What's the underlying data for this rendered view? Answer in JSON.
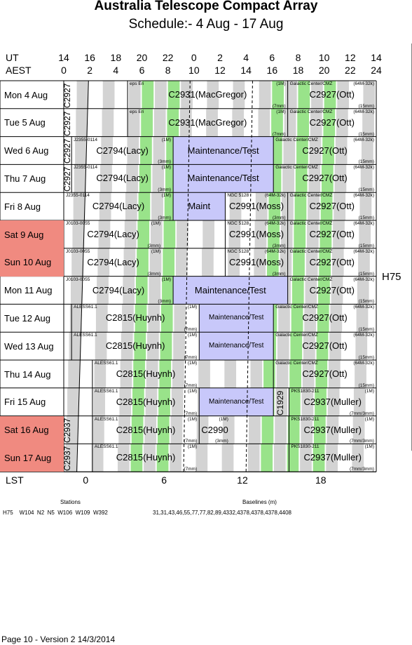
{
  "header": {
    "title": "Australia Telescope Compact Array",
    "subtitle": "Schedule:- 4  Aug - 17 Aug"
  },
  "axes": {
    "ut_label": "UT",
    "aest_label": "AEST",
    "lst_label": "LST",
    "ut_ticks": [
      "14",
      "16",
      "18",
      "20",
      "22",
      "0",
      "2",
      "4",
      "6",
      "8",
      "10",
      "12",
      "14"
    ],
    "aest_ticks": [
      "0",
      "2",
      "4",
      "6",
      "8",
      "10",
      "12",
      "14",
      "16",
      "18",
      "20",
      "22",
      "24"
    ],
    "lst_ticks": [
      "0",
      "6",
      "12",
      "18"
    ]
  },
  "colors": {
    "weekend": "#f08a80",
    "green": "#99e38a",
    "grey": "#d3d3d3",
    "maintenance": "#c8c8fa"
  },
  "days": [
    {
      "label": "Mon   4  Aug",
      "weekend": false
    },
    {
      "label": "Tue   5  Aug",
      "weekend": false
    },
    {
      "label": "Wed   6  Aug",
      "weekend": false
    },
    {
      "label": "Thu   7  Aug",
      "weekend": false
    },
    {
      "label": "Fri    8  Aug",
      "weekend": false
    },
    {
      "label": "Sat   9  Aug",
      "weekend": true
    },
    {
      "label": "Sun  10 Aug",
      "weekend": true
    },
    {
      "label": "Mon  11 Aug",
      "weekend": false
    },
    {
      "label": "Tue   12 Aug",
      "weekend": false
    },
    {
      "label": "Wed  13 Aug",
      "weekend": false
    },
    {
      "label": "Thu   14 Aug",
      "weekend": false
    },
    {
      "label": "Fri    15 Aug",
      "weekend": false
    },
    {
      "label": "Sat   16 Aug",
      "weekend": true
    },
    {
      "label": "Sun  17 Aug",
      "weekend": true
    }
  ],
  "configuration": "H75",
  "stations_label": "Stations",
  "stations": "H75    W104  N2  N5  W106  W109  W392",
  "baselines_label": "Baselines (m)",
  "baselines": "31,31,43,46,55,77,77,82,89,4332,4378,4378,4378,4408",
  "footer": "Page 10 - Version 2  14/3/2014",
  "rows": [
    {
      "blocks": [
        {
          "a": 0,
          "b": 0.6,
          "vert": "C2927"
        },
        {
          "a": 4.9,
          "b": 17.2,
          "src": "eps Eri",
          "cfg": "(1M)",
          "name": "C2931(MacGregor)",
          "rec": "(7mm)"
        },
        {
          "a": 17.2,
          "b": 24,
          "src": "Galactic Center/CMZ",
          "cfg": "(64M-32k)",
          "name": "C2927(Ott)",
          "rec": "(15mm)"
        }
      ]
    },
    {
      "blocks": [
        {
          "a": 0,
          "b": 0.6,
          "vert": "C2927"
        },
        {
          "a": 4.9,
          "b": 17.2,
          "src": "eps Eri",
          "cfg": "(1M)",
          "name": "C2931(MacGregor)",
          "rec": "(7mm)"
        },
        {
          "a": 17.2,
          "b": 24,
          "src": "Galactic Center/CMZ",
          "cfg": "(64M-32k)",
          "name": "C2927(Ott)",
          "rec": "(15mm)"
        }
      ]
    },
    {
      "blocks": [
        {
          "a": 0,
          "b": 0.6,
          "vert": "C2927"
        },
        {
          "a": 0.6,
          "b": 8.4,
          "src": "J2355-0114",
          "cfg": "(1M)",
          "name": "C2794(Lacy)",
          "rec": "(3mm)"
        },
        {
          "a": 8.4,
          "b": 16.1,
          "name": "Maintenance/Test",
          "maint": true
        },
        {
          "a": 16.1,
          "b": 24,
          "src": "Galactic Center/CMZ",
          "cfg": "(64M-32k)",
          "name": "C2927(Ott)",
          "rec": "(15mm)"
        }
      ]
    },
    {
      "blocks": [
        {
          "a": 0,
          "b": 0.6,
          "vert": "C2927"
        },
        {
          "a": 0.6,
          "b": 8.4,
          "src": "J2355-0114",
          "cfg": "(1M)",
          "name": "C2794(Lacy)",
          "rec": "(3mm)"
        },
        {
          "a": 8.4,
          "b": 16.1,
          "name": "Maintenance/Test",
          "maint": true
        },
        {
          "a": 16.1,
          "b": 24,
          "src": "Galactic Center/CMZ",
          "cfg": "(64M-32k)",
          "name": "C2927(Ott)",
          "rec": "(15mm)"
        }
      ]
    },
    {
      "blocks": [
        {
          "a": 0,
          "b": 8.4,
          "src": "J2355-0114",
          "cfg": "(1M)",
          "name": "C2794(Lacy)",
          "rec": "(3mm)"
        },
        {
          "a": 8.4,
          "b": 12.4,
          "name": "Maint",
          "maint": true
        },
        {
          "a": 12.4,
          "b": 17.2,
          "src": "NGC 5128",
          "cfg": "(64M-32k)",
          "name": "C2991(Moss)",
          "rec": "(3mm)"
        },
        {
          "a": 17.2,
          "b": 24,
          "src": "Galactic Center/CMZ",
          "cfg": "(64M-32k)",
          "name": "C2927(Ott)",
          "rec": "(15mm)"
        }
      ]
    },
    {
      "blocks": [
        {
          "a": 0,
          "b": 7.6,
          "src": "J0103-0055",
          "cfg": "(1M)",
          "name": "C2794(Lacy)",
          "rec": "(3mm)"
        },
        {
          "a": 12.4,
          "b": 17.2,
          "src": "NGC 5128",
          "cfg": "(64M-32k)",
          "name": "C2991(Moss)",
          "rec": "(3mm)"
        },
        {
          "a": 17.2,
          "b": 24,
          "src": "Galactic Center/CMZ",
          "cfg": "(64M-32k)",
          "name": "C2927(Ott)",
          "rec": "(15mm)"
        }
      ]
    },
    {
      "blocks": [
        {
          "a": 0,
          "b": 7.6,
          "src": "J0103-0055",
          "cfg": "(1M)",
          "name": "C2794(Lacy)",
          "rec": "(3mm)"
        },
        {
          "a": 12.4,
          "b": 17.2,
          "src": "NGC 5128",
          "cfg": "(64M-32k)",
          "name": "C2991(Moss)",
          "rec": "(3mm)"
        },
        {
          "a": 17.2,
          "b": 24,
          "src": "Galactic Center/CMZ",
          "cfg": "(64M-32k)",
          "name": "C2927(Ott)",
          "rec": "(15mm)"
        }
      ]
    },
    {
      "blocks": [
        {
          "a": 0,
          "b": 8.4,
          "src": "J0103-0055",
          "cfg": "(1M)",
          "name": "C2794(Lacy)",
          "rec": "(3mm)"
        },
        {
          "a": 8.4,
          "b": 17.2,
          "name": "Maintenance/Test",
          "maint": true
        },
        {
          "a": 17.2,
          "b": 24,
          "src": "Galactic Center/CMZ",
          "cfg": "(64M-32k)",
          "name": "C2927(Ott)",
          "rec": "(15mm)"
        }
      ]
    },
    {
      "blocks": [
        {
          "a": 0.6,
          "b": 10.4,
          "src": "ALESS61.1",
          "cfg": "(1M)",
          "name": "C2815(Huynh)",
          "rec": "(7mm)"
        },
        {
          "a": 10.4,
          "b": 16.1,
          "name": "Maintenance/Test",
          "maint": true,
          "small": true
        },
        {
          "a": 16.1,
          "b": 24,
          "src": "Galactic Center/CMZ",
          "cfg": "(64M-32k)",
          "name": "C2927(Ott)",
          "rec": "(15mm)"
        }
      ]
    },
    {
      "blocks": [
        {
          "a": 0.6,
          "b": 10.4,
          "src": "ALESS61.1",
          "cfg": "(1M)",
          "name": "C2815(Huynh)",
          "rec": "(7mm)"
        },
        {
          "a": 10.4,
          "b": 16.1,
          "name": "Maintenance/Test",
          "maint": true,
          "small": true
        },
        {
          "a": 16.1,
          "b": 24,
          "src": "Galactic Center/CMZ",
          "cfg": "(64M-32k)",
          "name": "C2927(Ott)",
          "rec": "(15mm)"
        }
      ]
    },
    {
      "blocks": [
        {
          "a": 2.2,
          "b": 10.4,
          "src": "ALESS61.1",
          "cfg": "(1M)",
          "name": "C2815(Huynh)",
          "rec": "(7mm)"
        },
        {
          "a": 16.1,
          "b": 24,
          "src": "Galactic Center/CMZ",
          "cfg": "(64M-32k)",
          "name": "C2927(Ott)",
          "rec": "(15mm)"
        }
      ]
    },
    {
      "blocks": [
        {
          "a": 2.2,
          "b": 10.4,
          "src": "ALESS61.1",
          "cfg": "(1M)",
          "name": "C2815(Huynh)",
          "rec": "(7mm)"
        },
        {
          "a": 10.4,
          "b": 16.1,
          "name": "Maintenance/Test",
          "maint": true,
          "small": true
        },
        {
          "a": 16.1,
          "b": 17.3,
          "vert": "C1929"
        },
        {
          "a": 17.3,
          "b": 24,
          "src": "PKS1830-211",
          "cfg": "(1M)",
          "name": "C2937(Muller)",
          "rec": "(7mm/3mm)"
        }
      ]
    },
    {
      "blocks": [
        {
          "a": 0,
          "b": 0.6,
          "vert": "C2937"
        },
        {
          "a": 2.2,
          "b": 10.4,
          "src": "ALESS61.1",
          "cfg": "(1M)",
          "name": "C2815(Huynh)",
          "rec": "(7mm)"
        },
        {
          "a": 10.4,
          "b": 12.8,
          "cfg": "(1M)",
          "name": "C2990",
          "rec": "(3mm)",
          "center": true
        },
        {
          "a": 17.3,
          "b": 24,
          "src": "PKS1830-211",
          "cfg": "(1M)",
          "name": "C2937(Muller)",
          "rec": "(7mm/3mm)"
        }
      ]
    },
    {
      "blocks": [
        {
          "a": 0,
          "b": 0.6,
          "vert": "C2937"
        },
        {
          "a": 2.2,
          "b": 10.4,
          "src": "ALESS61.1",
          "cfg": "(1M)",
          "name": "C2815(Huynh)",
          "rec": "(7mm)"
        },
        {
          "a": 17.3,
          "b": 24,
          "src": "PKS1830-211",
          "cfg": "(1M)",
          "name": "C2937(Muller)",
          "rec": "(7mm/3mm)"
        }
      ]
    }
  ]
}
